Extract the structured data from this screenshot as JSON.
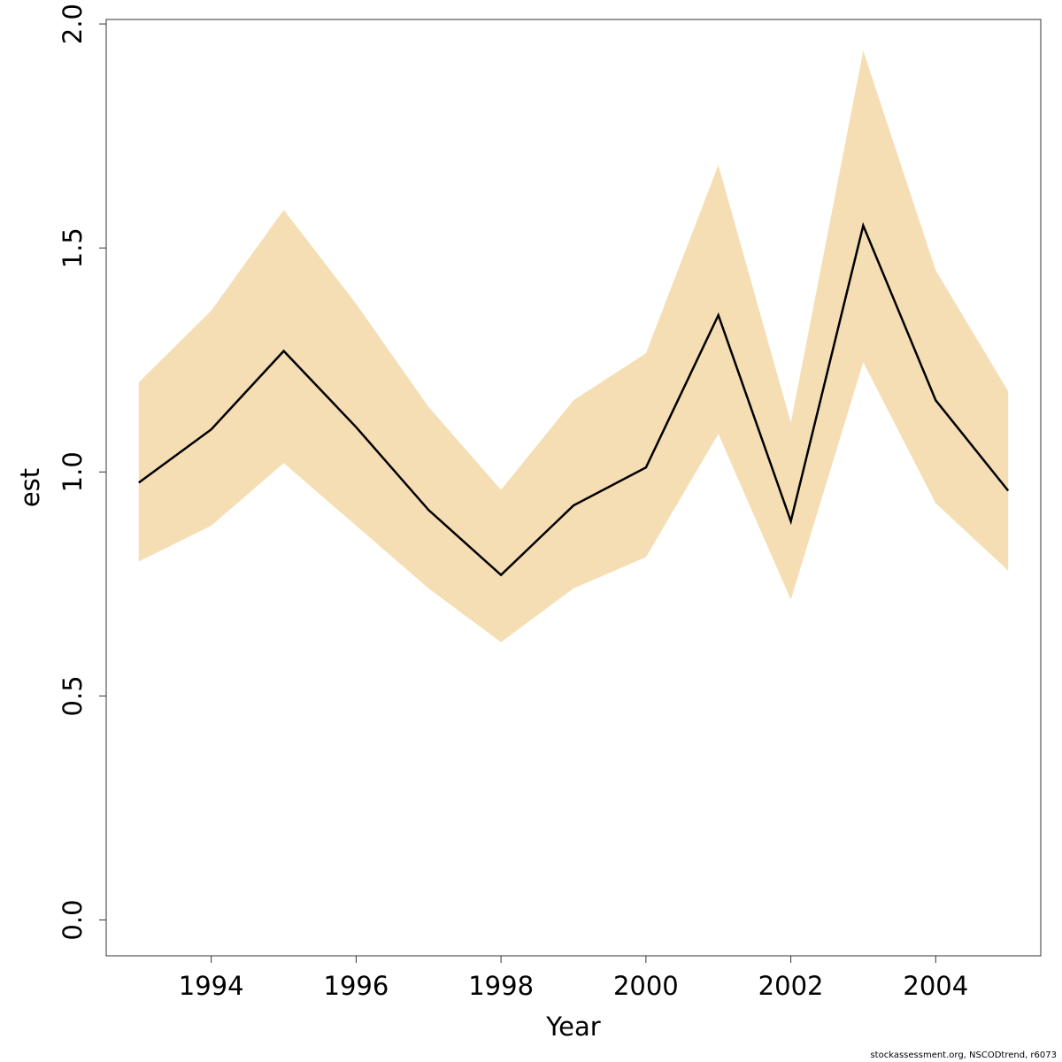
{
  "chart_data": {
    "type": "line",
    "title": "",
    "xlabel": "Year",
    "ylabel": "est",
    "xlim": [
      1992.55,
      2005.45
    ],
    "ylim": [
      -0.08,
      2.01
    ],
    "x_ticks": [
      1994,
      1996,
      1998,
      2000,
      2002,
      2004
    ],
    "y_ticks": [
      0.0,
      0.5,
      1.0,
      1.5,
      2.0
    ],
    "y_tick_labels": [
      "0.0",
      "0.5",
      "1.0",
      "1.5",
      "2.0"
    ],
    "grid": false,
    "x": [
      1993,
      1994,
      1995,
      1996,
      1997,
      1998,
      1999,
      2000,
      2001,
      2002,
      2003,
      2004,
      2005
    ],
    "series": [
      {
        "role": "estimate",
        "values": [
          0.976,
          1.095,
          1.27,
          1.1,
          0.915,
          0.77,
          0.925,
          1.01,
          1.35,
          0.89,
          1.55,
          1.16,
          0.958
        ]
      },
      {
        "role": "upper",
        "values": [
          1.2,
          1.36,
          1.585,
          1.375,
          1.145,
          0.96,
          1.16,
          1.265,
          1.685,
          1.11,
          1.94,
          1.45,
          1.18
        ]
      },
      {
        "role": "lower",
        "values": [
          0.8,
          0.88,
          1.02,
          0.88,
          0.74,
          0.62,
          0.74,
          0.81,
          1.085,
          0.715,
          1.245,
          0.93,
          0.78
        ]
      }
    ],
    "colors": {
      "band": "#f5deb3",
      "line": "#000000"
    }
  },
  "footer": {
    "text": "stockassessment.org, NSCODtrend, r6073"
  }
}
